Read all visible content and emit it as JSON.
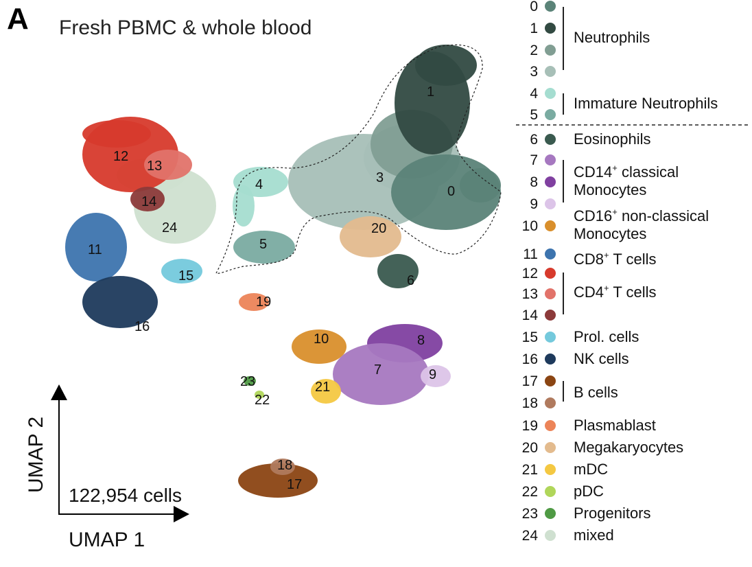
{
  "figure": {
    "panel_letter": "A",
    "title": "Fresh PBMC & whole blood",
    "cell_count": "122,954 cells",
    "xlabel": "UMAP 1",
    "ylabel": "UMAP 2"
  },
  "chart_data": {
    "type": "scatter",
    "title": "Fresh PBMC & whole blood",
    "xlabel": "UMAP 1",
    "ylabel": "UMAP 2",
    "annotation": "122,954 cells",
    "legend_placement": "right",
    "grid": false,
    "clusters": [
      {
        "id": "0",
        "color": "#5b8378"
      },
      {
        "id": "1",
        "color": "#324a42"
      },
      {
        "id": "2",
        "color": "#819e93"
      },
      {
        "id": "3",
        "color": "#a7bfb7"
      },
      {
        "id": "4",
        "color": "#a5ddd0"
      },
      {
        "id": "5",
        "color": "#7aaba1"
      },
      {
        "id": "6",
        "color": "#3a5a4f"
      },
      {
        "id": "7",
        "color": "#a678c0"
      },
      {
        "id": "8",
        "color": "#8040a0"
      },
      {
        "id": "9",
        "color": "#dcc4e8"
      },
      {
        "id": "10",
        "color": "#d98f2c"
      },
      {
        "id": "11",
        "color": "#3d74ae"
      },
      {
        "id": "12",
        "color": "#d73a2c"
      },
      {
        "id": "13",
        "color": "#e2736a"
      },
      {
        "id": "14",
        "color": "#8c3a3a"
      },
      {
        "id": "15",
        "color": "#74c9dc"
      },
      {
        "id": "16",
        "color": "#1e3a5c"
      },
      {
        "id": "17",
        "color": "#8b4513"
      },
      {
        "id": "18",
        "color": "#b07a5e"
      },
      {
        "id": "19",
        "color": "#ec8458"
      },
      {
        "id": "20",
        "color": "#e3bb8e"
      },
      {
        "id": "21",
        "color": "#f4c842"
      },
      {
        "id": "22",
        "color": "#b0d65a"
      },
      {
        "id": "23",
        "color": "#4f9a44"
      },
      {
        "id": "24",
        "color": "#cfe0d0"
      }
    ],
    "groups": [
      {
        "label": "Neutrophils",
        "clusters": [
          "0",
          "1",
          "2",
          "3"
        ]
      },
      {
        "label": "Immature Neutrophils",
        "clusters": [
          "4",
          "5"
        ]
      },
      {
        "label": "Eosinophils",
        "clusters": [
          "6"
        ]
      },
      {
        "label": "CD14+ classical Monocytes",
        "clusters": [
          "7",
          "8",
          "9"
        ]
      },
      {
        "label": "CD16+ non-classical Monocytes",
        "clusters": [
          "10"
        ]
      },
      {
        "label": "CD8+ T cells",
        "clusters": [
          "11"
        ]
      },
      {
        "label": "CD4+ T cells",
        "clusters": [
          "12",
          "13",
          "14"
        ]
      },
      {
        "label": "Prol. cells",
        "clusters": [
          "15"
        ]
      },
      {
        "label": "NK cells",
        "clusters": [
          "16"
        ]
      },
      {
        "label": "B cells",
        "clusters": [
          "17",
          "18"
        ]
      },
      {
        "label": "Plasmablast",
        "clusters": [
          "19"
        ]
      },
      {
        "label": "Megakaryocytes",
        "clusters": [
          "20"
        ]
      },
      {
        "label": "mDC",
        "clusters": [
          "21"
        ]
      },
      {
        "label": "pDC",
        "clusters": [
          "22"
        ]
      },
      {
        "label": "Progenitors",
        "clusters": [
          "23"
        ]
      },
      {
        "label": "mixed",
        "clusters": [
          "24"
        ]
      }
    ]
  },
  "legend": {
    "numbers": [
      "0",
      "1",
      "2",
      "3",
      "4",
      "5",
      "6",
      "7",
      "8",
      "9",
      "10",
      "11",
      "12",
      "13",
      "14",
      "15",
      "16",
      "17",
      "18",
      "19",
      "20",
      "21",
      "22",
      "23",
      "24"
    ],
    "labels": {
      "neutrophils": "Neutrophils",
      "immature_neutrophils": "Immature Neutrophils",
      "eosinophils": "Eosinophils",
      "cd14_a": "CD14",
      "cd14_sup": "+",
      "cd14_b": " classical",
      "cd14_c": "Monocytes",
      "cd16_a": "CD16",
      "cd16_sup": "+",
      "cd16_b": " non-classical",
      "cd16_c": "Monocytes",
      "cd8_a": "CD8",
      "cd8_sup": "+",
      "cd8_b": " T cells",
      "cd4_a": "CD4",
      "cd4_sup": "+",
      "cd4_b": " T cells",
      "prol": "Prol. cells",
      "nk": "NK cells",
      "b": "B cells",
      "plasmablast": "Plasmablast",
      "megakaryocytes": "Megakaryocytes",
      "mdc": "mDC",
      "pdc": "pDC",
      "progenitors": "Progenitors",
      "mixed": "mixed"
    }
  }
}
